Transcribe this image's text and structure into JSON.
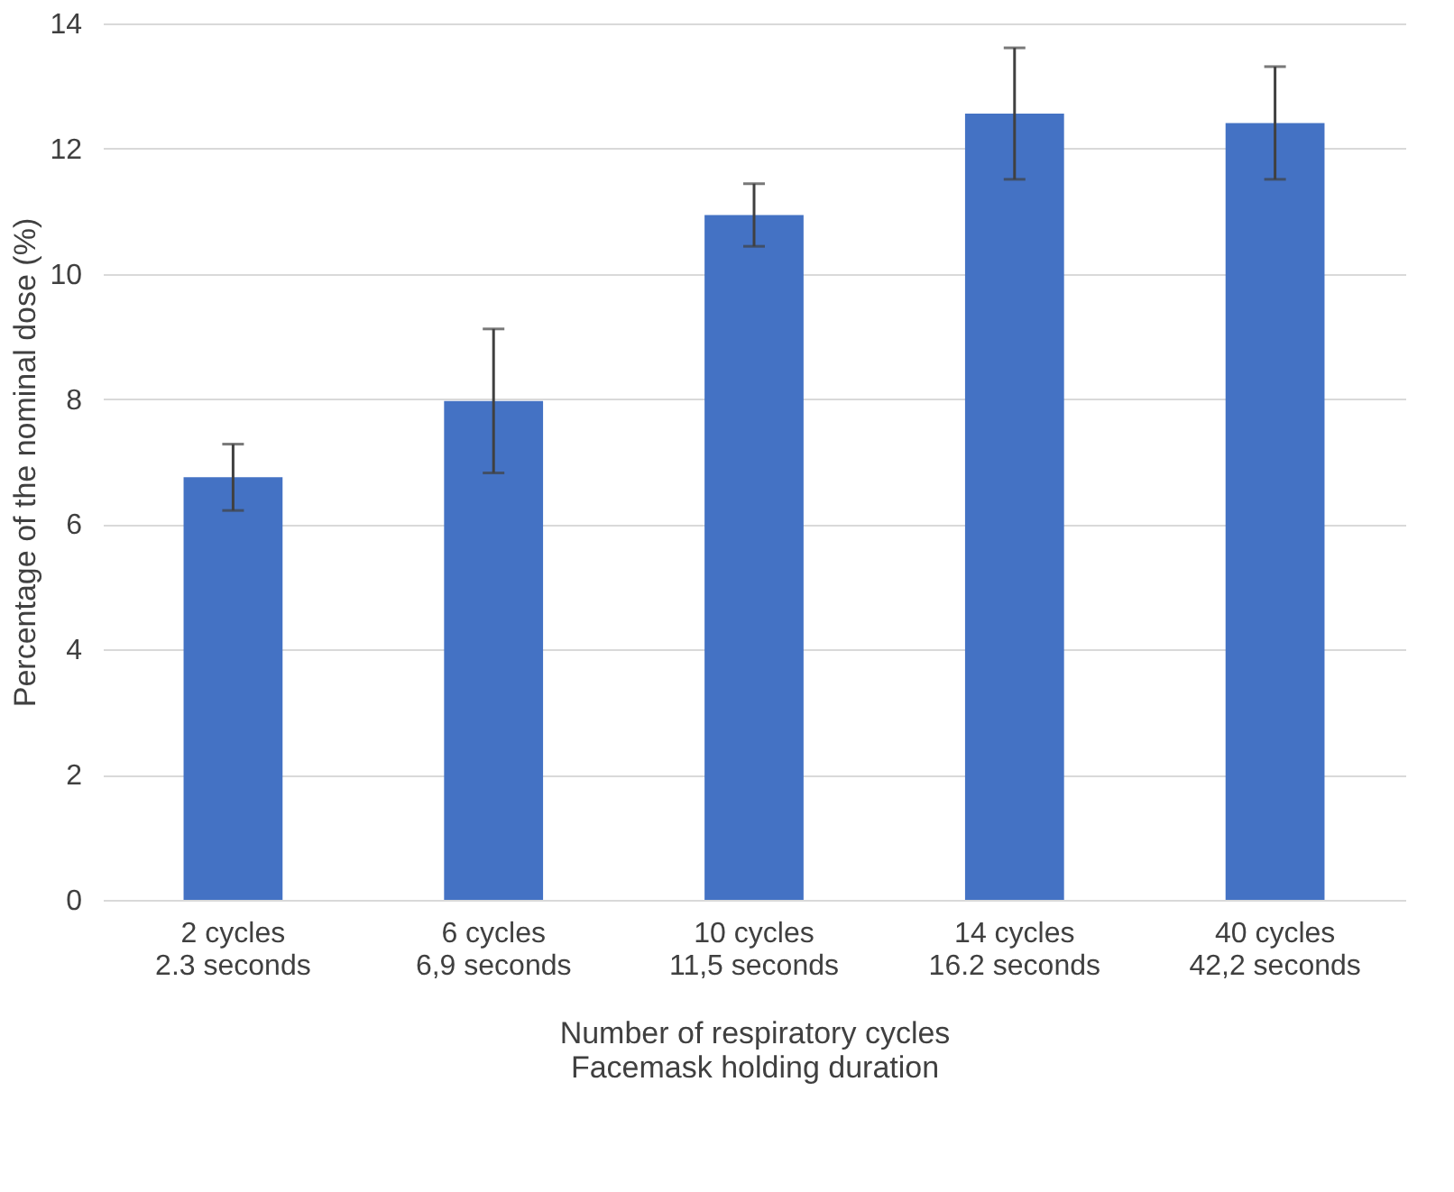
{
  "chart_data": {
    "type": "bar",
    "categories": [
      "2 cycles\n2.3 seconds",
      "6 cycles\n6,9 seconds",
      "10 cycles\n11,5 seconds",
      "14 cycles\n16.2 seconds",
      "40 cycles\n42,2 seconds"
    ],
    "values": [
      6.75,
      7.97,
      10.94,
      12.56,
      12.41
    ],
    "errors": [
      0.53,
      1.15,
      0.5,
      1.05,
      0.9
    ],
    "color": "#4472c4",
    "xlabel": "Number of respiratory cycles\nFacemask holding duration",
    "ylabel": "Percentage of the nominal dose (%)",
    "ylim": [
      0,
      14
    ],
    "yticks": [
      0,
      2,
      4,
      6,
      8,
      10,
      12,
      14
    ],
    "grid": "y"
  }
}
